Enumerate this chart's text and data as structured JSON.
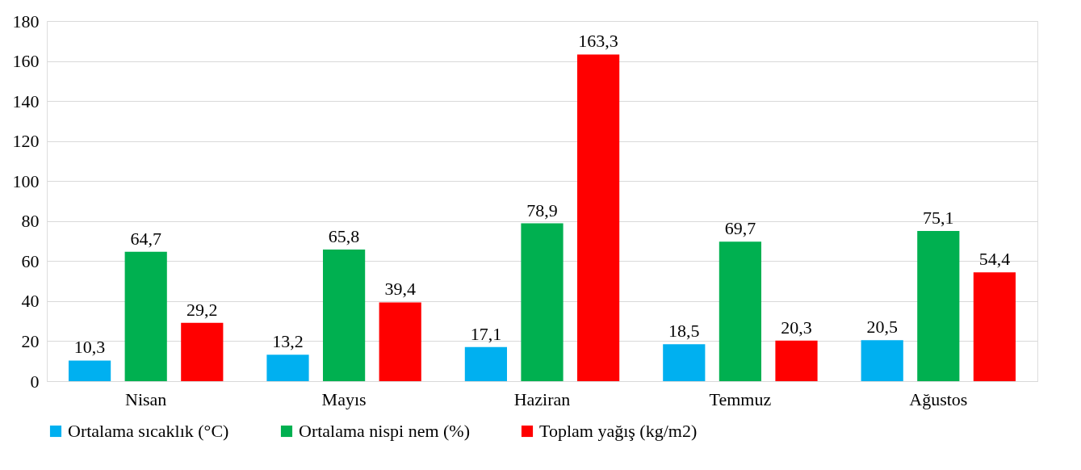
{
  "chart_data": {
    "type": "bar",
    "categories": [
      "Nisan",
      "Mayıs",
      "Haziran",
      "Temmuz",
      "Ağustos"
    ],
    "series": [
      {
        "name": "Ortalama sıcaklık (°C)",
        "color": "#00b0f0",
        "values": [
          10.3,
          13.2,
          17.1,
          18.5,
          20.5
        ],
        "value_labels": [
          "10,3",
          "13,2",
          "17,1",
          "18,5",
          "20,5"
        ]
      },
      {
        "name": "Ortalama nispi nem (%)",
        "color": "#00b050",
        "values": [
          64.7,
          65.8,
          78.9,
          69.7,
          75.1
        ],
        "value_labels": [
          "64,7",
          "65,8",
          "78,9",
          "69,7",
          "75,1"
        ]
      },
      {
        "name": "Toplam yağış (kg/m2)",
        "color": "#ff0000",
        "values": [
          29.2,
          39.4,
          163.3,
          20.3,
          54.4
        ],
        "value_labels": [
          "29,2",
          "39,4",
          "163,3",
          "20,3",
          "54,4"
        ]
      }
    ],
    "ylim": [
      0,
      180
    ],
    "yticks": [
      0,
      20,
      40,
      60,
      80,
      100,
      120,
      140,
      160,
      180
    ],
    "grid": "y",
    "legend": "bottom"
  }
}
